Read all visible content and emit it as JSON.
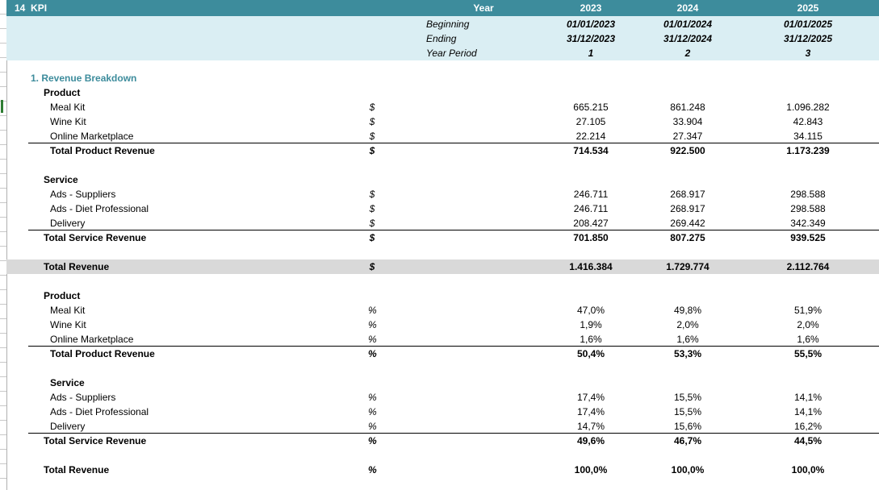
{
  "sheet": {
    "title_num": "14",
    "title": "KPI"
  },
  "header": {
    "year_label": "Year",
    "years": [
      "2023",
      "2024",
      "2025"
    ],
    "beginning_label": "Beginning",
    "beginning": [
      "01/01/2023",
      "01/01/2024",
      "01/01/2025"
    ],
    "ending_label": "Ending",
    "ending": [
      "31/12/2023",
      "31/12/2024",
      "31/12/2025"
    ],
    "period_label": "Year Period",
    "period": [
      "1",
      "2",
      "3"
    ]
  },
  "revenue": {
    "section_title": "1. Revenue Breakdown",
    "product_heading": "Product",
    "meal_kit": {
      "label": "Meal Kit",
      "unit": "$",
      "values": [
        "665.215",
        "861.248",
        "1.096.282"
      ]
    },
    "wine_kit": {
      "label": "Wine Kit",
      "unit": "$",
      "values": [
        "27.105",
        "33.904",
        "42.843"
      ]
    },
    "online": {
      "label": "Online Marketplace",
      "unit": "$",
      "values": [
        "22.214",
        "27.347",
        "34.115"
      ]
    },
    "total_product": {
      "label": "Total Product Revenue",
      "unit": "$",
      "values": [
        "714.534",
        "922.500",
        "1.173.239"
      ]
    },
    "service_heading": "Service",
    "ads_suppliers": {
      "label": "Ads - Suppliers",
      "unit": "$",
      "values": [
        "246.711",
        "268.917",
        "298.588"
      ]
    },
    "ads_diet": {
      "label": "Ads -  Diet Professional",
      "unit": "$",
      "values": [
        "246.711",
        "268.917",
        "298.588"
      ]
    },
    "delivery": {
      "label": "Delivery",
      "unit": "$",
      "values": [
        "208.427",
        "269.442",
        "342.349"
      ]
    },
    "total_service": {
      "label": "Total Service Revenue",
      "unit": "$",
      "values": [
        "701.850",
        "807.275",
        "939.525"
      ]
    },
    "total": {
      "label": "Total Revenue",
      "unit": "$",
      "values": [
        "1.416.384",
        "1.729.774",
        "2.112.764"
      ]
    }
  },
  "share": {
    "product_heading": "Product",
    "meal_kit": {
      "label": "Meal Kit",
      "unit": "%",
      "values": [
        "47,0%",
        "49,8%",
        "51,9%"
      ]
    },
    "wine_kit": {
      "label": "Wine Kit",
      "unit": "%",
      "values": [
        "1,9%",
        "2,0%",
        "2,0%"
      ]
    },
    "online": {
      "label": "Online Marketplace",
      "unit": "%",
      "values": [
        "1,6%",
        "1,6%",
        "1,6%"
      ]
    },
    "total_product": {
      "label": "Total Product Revenue",
      "unit": "%",
      "values": [
        "50,4%",
        "53,3%",
        "55,5%"
      ]
    },
    "service_heading": "Service",
    "ads_suppliers": {
      "label": "Ads - Suppliers",
      "unit": "%",
      "values": [
        "17,4%",
        "15,5%",
        "14,1%"
      ]
    },
    "ads_diet": {
      "label": "Ads -  Diet Professional",
      "unit": "%",
      "values": [
        "17,4%",
        "15,5%",
        "14,1%"
      ]
    },
    "delivery": {
      "label": "Delivery",
      "unit": "%",
      "values": [
        "14,7%",
        "15,6%",
        "16,2%"
      ]
    },
    "total_service": {
      "label": "Total Service Revenue",
      "unit": "%",
      "values": [
        "49,6%",
        "46,7%",
        "44,5%"
      ]
    },
    "total": {
      "label": "Total Revenue",
      "unit": "%",
      "values": [
        "100,0%",
        "100,0%",
        "100,0%"
      ]
    }
  },
  "colors": {
    "title_band": "#3d8c9c",
    "header_band": "#daeef3",
    "total_band": "#d9d9d9",
    "section_text": "#3d8c9c"
  }
}
